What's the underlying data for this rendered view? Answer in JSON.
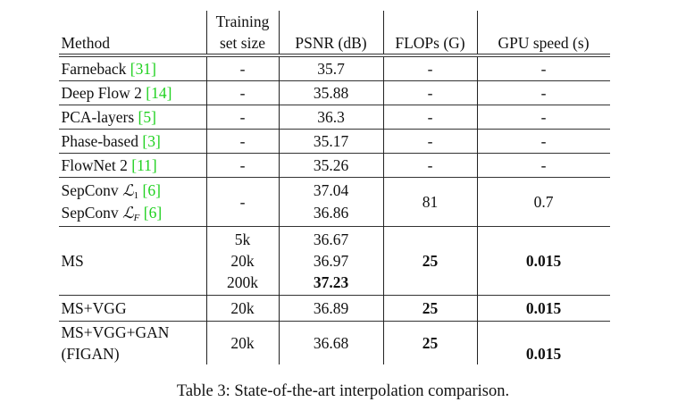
{
  "table": {
    "headers": [
      [
        "",
        "Training"
      ],
      [
        "Method",
        "set size"
      ],
      "PSNR (dB)",
      "FLOPs (G)",
      "GPU speed (s)"
    ],
    "header_cells": {
      "method": "Method",
      "training_1": "Training",
      "training_2": "set size",
      "psnr": "PSNR (dB)",
      "flops": "FLOPs (G)",
      "gpu": "GPU speed (s)"
    },
    "rows": [
      {
        "method": "Farneback ",
        "ref": "[31]",
        "train": "-",
        "psnr": "35.7",
        "flops": "-",
        "gpu": "-"
      },
      {
        "method": "Deep Flow 2 ",
        "ref": "[14]",
        "train": "-",
        "psnr": "35.88",
        "flops": "-",
        "gpu": "-"
      },
      {
        "method": "PCA-layers ",
        "ref": "[5]",
        "train": "-",
        "psnr": "36.3",
        "flops": "-",
        "gpu": "-"
      },
      {
        "method": "Phase-based ",
        "ref": "[3]",
        "train": "-",
        "psnr": "35.17",
        "flops": "-",
        "gpu": "-"
      },
      {
        "method": "FlowNet 2 ",
        "ref": "[11]",
        "train": "-",
        "psnr": "35.26",
        "flops": "-",
        "gpu": "-"
      }
    ],
    "sepconv": {
      "method_1": "SepConv ",
      "sub_1": "1",
      "method_2": "SepConv ",
      "sub_2": "F",
      "script": "ℒ",
      "ref": "[6]",
      "train": "-",
      "psnr_1": "37.04",
      "psnr_2": "36.86",
      "flops": "81",
      "gpu": "0.7"
    },
    "ms": {
      "method": "MS",
      "train": [
        "5k",
        "20k",
        "200k"
      ],
      "psnr": [
        "36.67",
        "36.97",
        "37.23"
      ],
      "flops": "25",
      "gpu": "0.015"
    },
    "ms_vgg": {
      "method": "MS+VGG",
      "train": "20k",
      "psnr": "36.89",
      "flops": "25",
      "gpu": "0.015"
    },
    "figan": {
      "method_1": "MS+VGG+GAN",
      "method_2": "(FIGAN)",
      "train": "20k",
      "psnr": "36.68",
      "flops": "25",
      "gpu": "0.015"
    },
    "ref_color": "#1fd11f"
  },
  "caption": "Table 3: State-of-the-art interpolation comparison."
}
